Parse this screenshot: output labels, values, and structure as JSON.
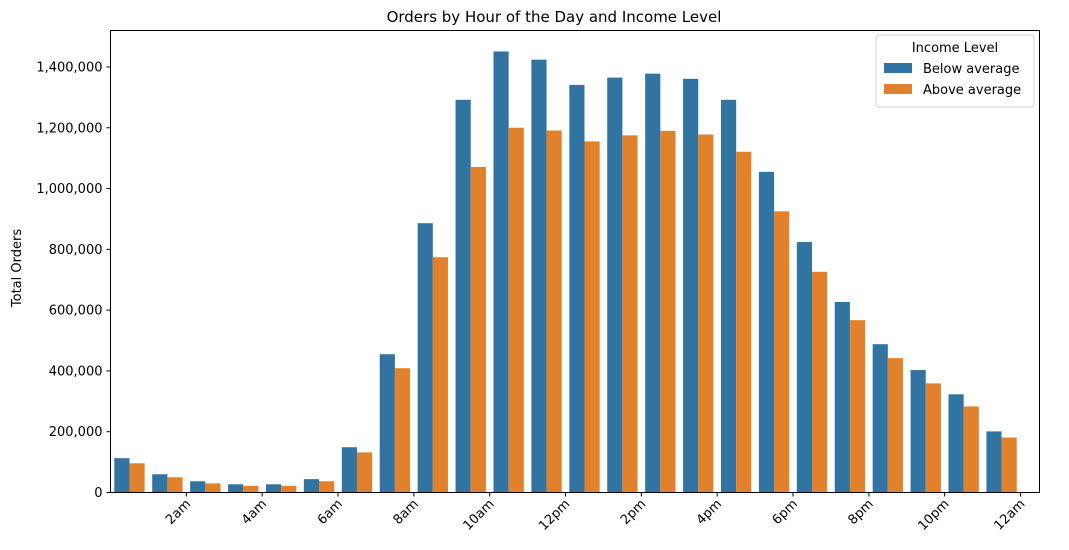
{
  "chart_data": {
    "type": "bar",
    "title": "Orders by Hour of the Day and Income Level",
    "xlabel": "",
    "ylabel": "Total Orders",
    "ylim": [
      0,
      1520000
    ],
    "categories": [
      "0",
      "1",
      "2",
      "3",
      "4",
      "5",
      "6",
      "7",
      "8",
      "9",
      "10",
      "11",
      "12",
      "13",
      "14",
      "15",
      "16",
      "17",
      "18",
      "19",
      "20",
      "21",
      "22",
      "23"
    ],
    "x_tick_labels": [
      "2am",
      "4am",
      "6am",
      "8am",
      "10am",
      "12pm",
      "2pm",
      "4pm",
      "6pm",
      "8pm",
      "10pm",
      "12am"
    ],
    "y_ticks": [
      0,
      200000,
      400000,
      600000,
      800000,
      1000000,
      1200000,
      1400000
    ],
    "y_tick_labels": [
      "0",
      "200,000",
      "400,000",
      "600,000",
      "800,000",
      "1,000,000",
      "1,200,000",
      "1,400,000"
    ],
    "legend": {
      "title": "Income Level",
      "placement": "top-right"
    },
    "series": [
      {
        "name": "Below average",
        "color": "#3274a1",
        "values": [
          113000,
          60000,
          37000,
          27000,
          27000,
          44000,
          149000,
          455000,
          886000,
          1292000,
          1451000,
          1424000,
          1341000,
          1365000,
          1378000,
          1361000,
          1292000,
          1055000,
          824000,
          627000,
          488000,
          403000,
          323000,
          201000
        ]
      },
      {
        "name": "Above average",
        "color": "#e1812c",
        "values": [
          96000,
          50000,
          30000,
          22000,
          22000,
          37000,
          132000,
          409000,
          774000,
          1071000,
          1200000,
          1191000,
          1155000,
          1175000,
          1190000,
          1178000,
          1121000,
          925000,
          726000,
          567000,
          442000,
          359000,
          283000,
          181000
        ]
      }
    ]
  }
}
